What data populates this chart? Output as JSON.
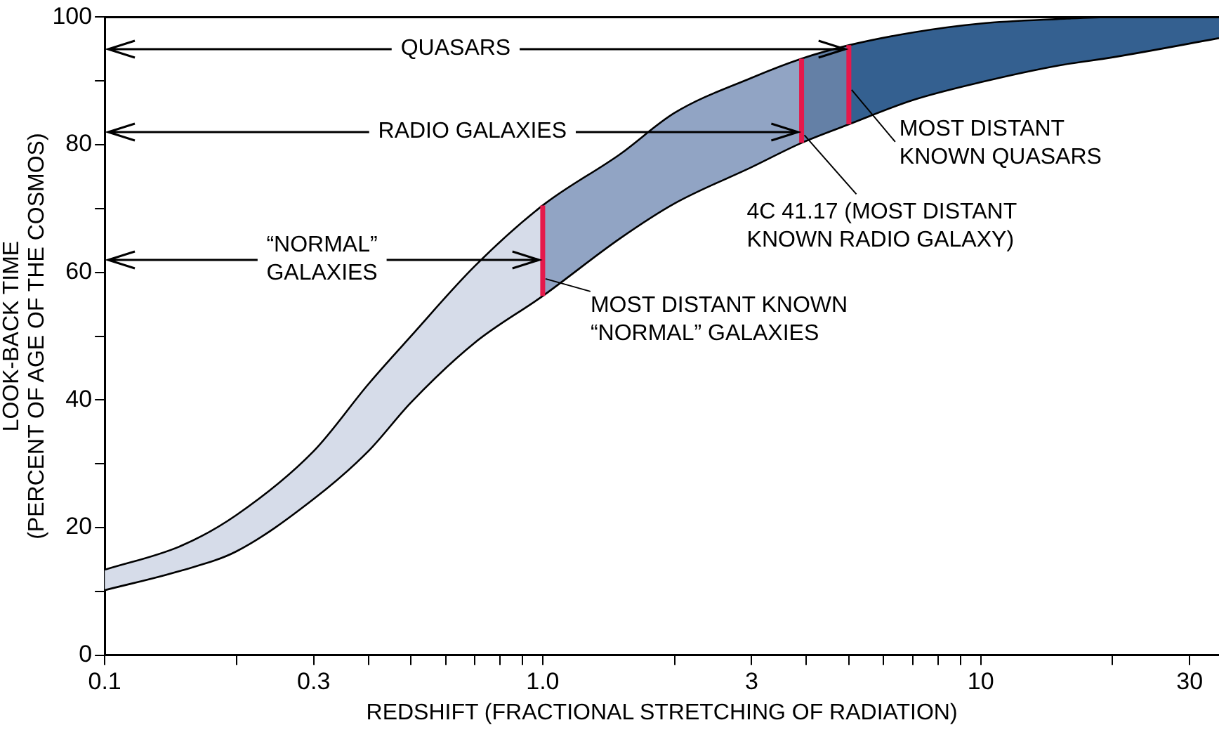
{
  "chart_data": {
    "type": "line",
    "xlabel": "REDSHIFT (FRACTIONAL STRETCHING OF RADIATION)",
    "ylabel": "LOOK-BACK TIME\n(PERCENT OF AGE OF THE COSMOS)",
    "log": "x",
    "grid": false,
    "legend": false,
    "marker": "none",
    "xlim": [
      0.1,
      35
    ],
    "xticks": [
      0.1,
      {
        "value": 0.2,
        "label": null
      },
      0.3,
      {
        "value": 0.4,
        "label": null
      },
      {
        "value": 0.5,
        "label": null
      },
      {
        "value": 0.6,
        "label": null
      },
      {
        "value": 0.7,
        "label": null
      },
      {
        "value": 0.8,
        "label": null
      },
      {
        "value": 0.9,
        "label": null
      },
      {
        "value": 1,
        "label": "1.0"
      },
      {
        "value": 2,
        "label": null
      },
      3,
      {
        "value": 4,
        "label": null
      },
      {
        "value": 5,
        "label": null
      },
      {
        "value": 6,
        "label": null
      },
      {
        "value": 7,
        "label": null
      },
      {
        "value": 8,
        "label": null
      },
      {
        "value": 9,
        "label": null
      },
      10,
      {
        "value": 20,
        "label": null
      },
      30
    ],
    "ylim": [
      0,
      100
    ],
    "yticks": [
      0,
      {
        "value": 10,
        "label": null
      },
      20,
      {
        "value": 30,
        "label": null
      },
      40,
      {
        "value": 50,
        "label": null
      },
      60,
      {
        "value": 70,
        "label": null
      },
      80,
      {
        "value": 90,
        "label": null
      },
      100
    ],
    "series": [
      {
        "color": "#d6dce9",
        "x": [
          0.1,
          0.15,
          0.2,
          0.3,
          0.4,
          0.5,
          0.7,
          1.0
        ],
        "values": [
          null,
          null,
          null,
          null,
          null,
          null,
          null,
          null
        ],
        "upper": [
          13.4,
          17.2,
          22,
          32,
          42.5,
          50,
          61,
          70.5
        ],
        "lower": [
          10.2,
          13.3,
          16.3,
          24.5,
          32,
          39.6,
          49,
          56.3
        ]
      },
      {
        "color": "#91a4c4",
        "x": [
          1.0,
          1.5,
          2.0,
          3.0,
          3.9
        ],
        "values": [
          null,
          null,
          null,
          null,
          null
        ],
        "upper": [
          70.5,
          78.5,
          85,
          90.5,
          93.5
        ],
        "lower": [
          56.3,
          65.3,
          70.8,
          76.5,
          80.3
        ]
      },
      {
        "color": "#6480a6",
        "x": [
          3.9,
          5.0
        ],
        "values": [
          null,
          null
        ],
        "upper": [
          93.5,
          95.6
        ],
        "lower": [
          80.3,
          83.2
        ]
      },
      {
        "color": "#346090",
        "x": [
          5,
          7,
          10,
          15,
          20,
          35
        ],
        "values": [
          null,
          null,
          null,
          null,
          null,
          null
        ],
        "upper": [
          95.6,
          97.6,
          99,
          99.7,
          100,
          100
        ],
        "lower": [
          83.2,
          87,
          89.8,
          92.4,
          93.7,
          96.7
        ]
      },
      {
        "color": "#000000",
        "x": [
          0.1,
          0.15,
          0.2,
          0.3,
          0.4,
          0.5,
          0.7,
          1.0,
          1.5,
          2.0,
          3.0,
          3.9,
          5,
          7,
          10,
          15,
          20,
          35
        ],
        "values": [
          13.4,
          17.2,
          22,
          32,
          42.5,
          50,
          61,
          70.5,
          78.5,
          85,
          90.5,
          93.5,
          95.6,
          97.6,
          99,
          99.7,
          100,
          100
        ]
      },
      {
        "color": "#000000",
        "x": [
          0.1,
          0.15,
          0.2,
          0.3,
          0.4,
          0.5,
          0.7,
          1.0,
          1.5,
          2.0,
          3.0,
          3.9,
          5,
          7,
          10,
          15,
          20,
          35
        ],
        "values": [
          10.2,
          13.3,
          16.3,
          24.5,
          32,
          39.6,
          49,
          56.3,
          65.3,
          70.8,
          76.5,
          80.3,
          83.2,
          87,
          89.8,
          92.4,
          93.7,
          96.7
        ]
      },
      {
        "color": "#e5194b",
        "x": [
          1.0,
          1.0
        ],
        "values": [
          56.3,
          70.5
        ]
      },
      {
        "color": "#e5194b",
        "x": [
          3.9,
          3.9
        ],
        "values": [
          80.3,
          93.5
        ]
      },
      {
        "color": "#e5194b",
        "x": [
          5.0,
          5.0
        ],
        "values": [
          83.2,
          95.6
        ]
      }
    ],
    "annotations": [
      {
        "text": "QUASARS",
        "x": 5.0,
        "y": 95
      },
      {
        "text": "RADIO GALAXIES",
        "x": 3.9,
        "y": 82
      },
      {
        "text": "“NORMAL”\nGALAXIES",
        "x": 1.0,
        "y": 62
      },
      {
        "text": "MOST DISTANT KNOWN\n“NORMAL” GALAXIES",
        "x": 1.0,
        "y": 59
      },
      {
        "text": "4C 41.17 (MOST DISTANT\nKNOWN RADIO GALAXY)",
        "x": 3.9,
        "y": 81.5
      },
      {
        "text": "MOST DISTANT\nKNOWN QUASARS",
        "x": 5.0,
        "y": 88.6
      }
    ]
  }
}
